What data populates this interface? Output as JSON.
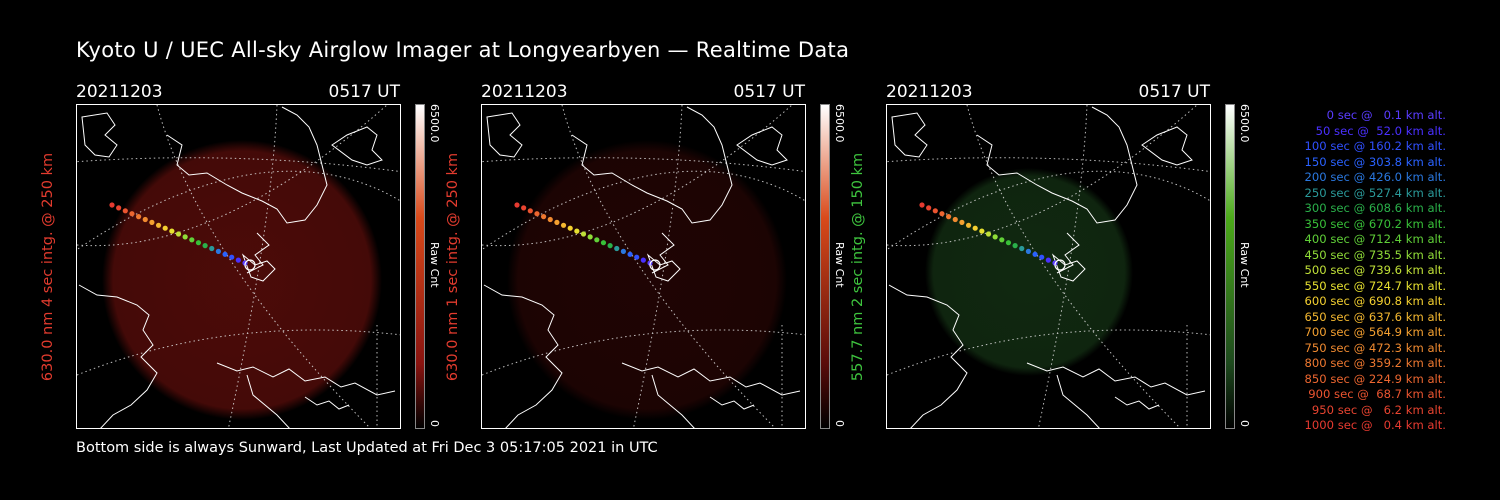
{
  "title": "Kyoto U / UEC All-sky Airglow Imager at Longyearbyen — Realtime Data",
  "footer": "Bottom side is always Sunward, Last Updated at Fri Dec  3 05:17:05 2021 in UTC",
  "panels": [
    {
      "date": "20211203",
      "time": "0517 UT",
      "ylabel": "630.0 nm 4 sec intg. @ 250 km",
      "ylabel_color": "#e23b2e",
      "glow_color": "#8a1410",
      "glow_opacity": 0.55,
      "cbar_top_color": "#ffffff",
      "cbar_mid_color": "#d94a1a",
      "cbar_max": "6500.0",
      "cbar_unit": "Raw Cnt",
      "cbar_min": "0"
    },
    {
      "date": "20211203",
      "time": "0517 UT",
      "ylabel": "630.0 nm 1 sec intg. @ 250 km",
      "ylabel_color": "#e23b2e",
      "glow_color": "#5a0c0a",
      "glow_opacity": 0.35,
      "cbar_top_color": "#ffffff",
      "cbar_mid_color": "#d94a1a",
      "cbar_max": "6500.0",
      "cbar_unit": "Raw Cnt",
      "cbar_min": "0"
    },
    {
      "date": "20211203",
      "time": "0517 UT",
      "ylabel": "557.7 nm 2 sec intg. @ 150 km",
      "ylabel_color": "#3ec43e",
      "glow_color": "#1e4a1e",
      "glow_opacity": 0.55,
      "cbar_top_color": "#ffffff",
      "cbar_mid_color": "#4caa1a",
      "cbar_max": "6500.0",
      "cbar_unit": "Raw Cnt",
      "cbar_min": "0"
    }
  ],
  "legend": [
    {
      "text": "0 sec @   0.1 km alt.",
      "color": "#5a3cff"
    },
    {
      "text": "50 sec @  52.0 km alt.",
      "color": "#4a30ff"
    },
    {
      "text": "100 sec @ 160.2 km alt.",
      "color": "#3050ff"
    },
    {
      "text": "150 sec @ 303.8 km alt.",
      "color": "#2a62ff"
    },
    {
      "text": "200 sec @ 426.0 km alt.",
      "color": "#2a78e0"
    },
    {
      "text": "250 sec @ 527.4 km alt.",
      "color": "#2a9a9a"
    },
    {
      "text": "300 sec @ 608.6 km alt.",
      "color": "#2ab04a"
    },
    {
      "text": "350 sec @ 670.2 km alt.",
      "color": "#38c038"
    },
    {
      "text": "400 sec @ 712.4 km alt.",
      "color": "#60d038"
    },
    {
      "text": "450 sec @ 735.5 km alt.",
      "color": "#90dc38"
    },
    {
      "text": "500 sec @ 739.6 km alt.",
      "color": "#c0e038"
    },
    {
      "text": "550 sec @ 724.7 km alt.",
      "color": "#e6e030"
    },
    {
      "text": "600 sec @ 690.8 km alt.",
      "color": "#f4d030"
    },
    {
      "text": "650 sec @ 637.6 km alt.",
      "color": "#f4b830"
    },
    {
      "text": "700 sec @ 564.9 km alt.",
      "color": "#f4a030"
    },
    {
      "text": "750 sec @ 472.3 km alt.",
      "color": "#f08a30"
    },
    {
      "text": "800 sec @ 359.2 km alt.",
      "color": "#ee7830"
    },
    {
      "text": "850 sec @ 224.9 km alt.",
      "color": "#ec6630"
    },
    {
      "text": "900 sec @  68.7 km alt.",
      "color": "#ea5430"
    },
    {
      "text": "950 sec @   6.2 km alt.",
      "color": "#e84430"
    },
    {
      "text": "1000 sec @   0.4 km alt.",
      "color": "#e63a30"
    }
  ]
}
